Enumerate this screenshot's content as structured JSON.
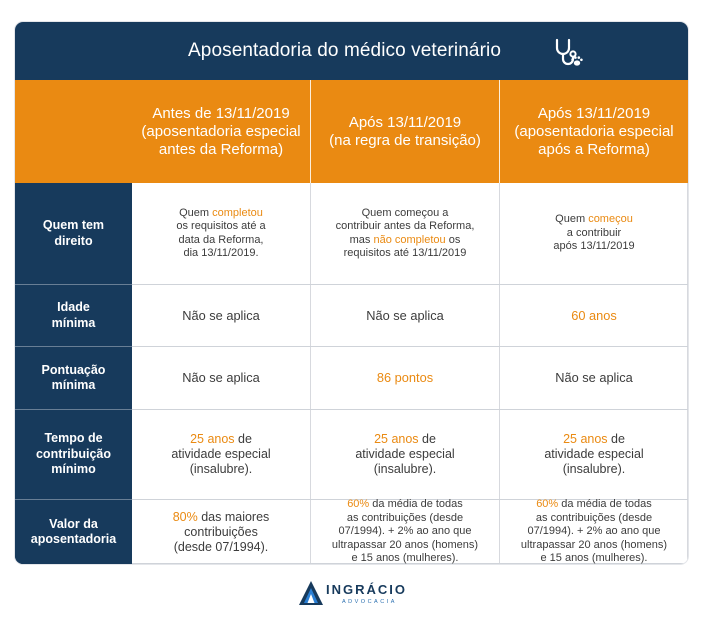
{
  "title": "Aposentadoria do médico veterinário",
  "title_icon": "stethoscope-paw-icon",
  "columns": [
    "Antes de 13/11/2019\n(aposentadoria especial\nantes da Reforma)",
    "Após 13/11/2019\n(na regra de transição)",
    "Após 13/11/2019\n(aposentadoria especial\napós a Reforma)"
  ],
  "rows": {
    "quem": {
      "label": "Quem tem\ndireito",
      "c1": {
        "a": "Quem ",
        "hl": "completou",
        "b": "\nos requisitos até a\ndata da Reforma,\ndia 13/11/2019."
      },
      "c2": {
        "a": "Quem começou a\ncontribuir antes da Reforma,\nmas ",
        "hl": "não completou",
        "b": " os\nrequisitos até 13/11/2019"
      },
      "c3": {
        "a": "Quem ",
        "hl": "começou",
        "b": "\na contribuir\napós 13/11/2019"
      }
    },
    "idade": {
      "label": "Idade\nmínima",
      "c1": "Não se aplica",
      "c2": "Não se aplica",
      "c3": "60 anos"
    },
    "pontuacao": {
      "label": "Pontuação\nmínima",
      "c1": "Não se aplica",
      "c2": "86 pontos",
      "c3": "Não se aplica"
    },
    "tempo": {
      "label": "Tempo de\ncontribuição\nmínimo",
      "c1": {
        "hl": "25 anos",
        "b": " de\natividade especial\n(insalubre)."
      },
      "c2": {
        "hl": "25 anos",
        "b": " de\natividade especial\n(insalubre)."
      },
      "c3": {
        "hl": "25 anos",
        "b": " de\natividade especial\n(insalubre)."
      }
    },
    "valor": {
      "label": "Valor da\naposentadoria",
      "c1": {
        "hl": "80%",
        "b": " das maiores\ncontribuições\n(desde 07/1994)."
      },
      "c2": {
        "hl": "60%",
        "b": " da média de todas\nas contribuições (desde\n07/1994). + 2% ao ano que\nultrapassar 20 anos (homens)\ne 15 anos (mulheres)."
      },
      "c3": {
        "hl": "60%",
        "b": " da média de todas\nas contribuições (desde\n07/1994). + 2% ao ano que\nultrapassar 20 anos (homens)\ne 15 anos (mulheres)."
      }
    }
  },
  "logo": {
    "name": "INGRÁCIO",
    "sub": "ADVOCACIA",
    "icon": "ingracio-logo-icon"
  },
  "colors": {
    "navy": "#173a5c",
    "orange": "#ea8a12",
    "text": "#3c3c3c"
  }
}
